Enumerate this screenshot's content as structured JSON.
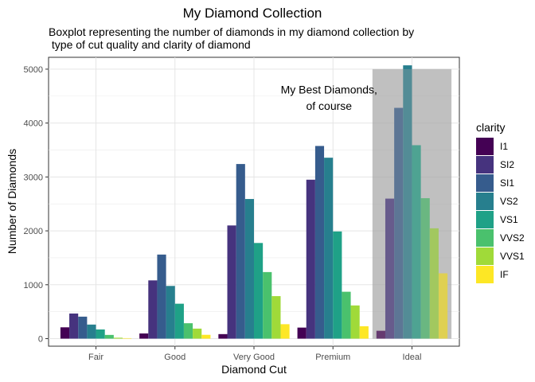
{
  "chart_data": {
    "type": "bar",
    "title": "My Diamond Collection",
    "subtitle_lines": [
      "Boxplot representing the number of diamonds in my diamond collection by",
      " type of cut quality and clarity of diamond"
    ],
    "xlabel": "Diamond Cut",
    "ylabel": "Number of Diamonds",
    "categories": [
      "Fair",
      "Good",
      "Very Good",
      "Premium",
      "Ideal"
    ],
    "ylim": [
      -140,
      5220
    ],
    "yticks": [
      0,
      1000,
      2000,
      3000,
      4000,
      5000
    ],
    "grid": true,
    "legend": {
      "title": "clarity",
      "position": "right"
    },
    "series": [
      {
        "name": "I1",
        "color": "#440154",
        "values": [
          210,
          96,
          84,
          205,
          146
        ]
      },
      {
        "name": "SI2",
        "color": "#46337E",
        "values": [
          466,
          1081,
          2100,
          2949,
          2598
        ]
      },
      {
        "name": "SI1",
        "color": "#365C8D",
        "values": [
          408,
          1560,
          3240,
          3575,
          4282
        ]
      },
      {
        "name": "VS2",
        "color": "#277F8E",
        "values": [
          261,
          978,
          2591,
          3357,
          5071
        ]
      },
      {
        "name": "VS1",
        "color": "#1FA187",
        "values": [
          170,
          648,
          1775,
          1989,
          3589
        ]
      },
      {
        "name": "VVS2",
        "color": "#4AC16D",
        "values": [
          69,
          286,
          1235,
          870,
          2606
        ]
      },
      {
        "name": "VVS1",
        "color": "#A0DA39",
        "values": [
          17,
          186,
          789,
          616,
          2047
        ]
      },
      {
        "name": "IF",
        "color": "#FDE725",
        "values": [
          9,
          71,
          268,
          230,
          1212
        ]
      }
    ],
    "annotation": {
      "lines": [
        "My Best Diamonds,",
        "of course"
      ],
      "x_category": "Ideal",
      "y_lines": [
        4620,
        4320
      ]
    },
    "highlight": {
      "category": "Ideal",
      "ymin": 0,
      "ymax": 5000,
      "color": "#A6A6A6"
    }
  }
}
